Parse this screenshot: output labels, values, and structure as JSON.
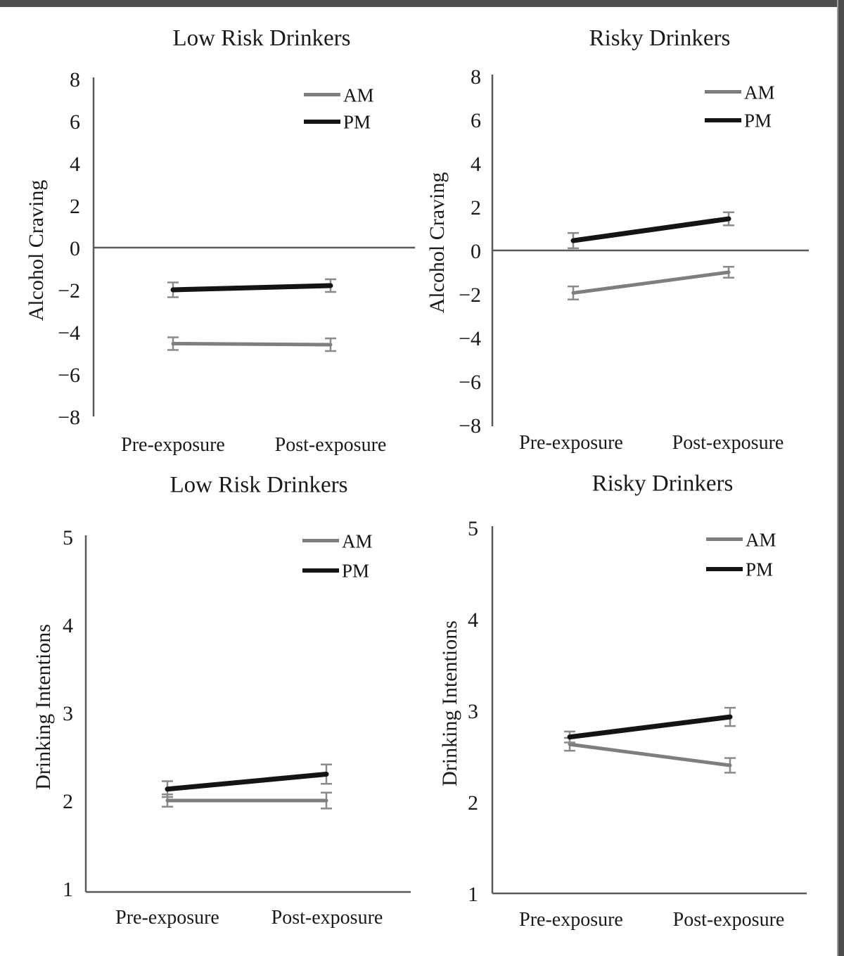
{
  "figure": {
    "background_color": "#ffffff",
    "frame_color": "#4e4e4e",
    "axis_color": "#5a5a5a",
    "error_bar_color": "#8a8a8a",
    "am_color": "#7e7e7e",
    "pm_color": "#141414"
  },
  "chart_data": [
    {
      "id": "alcohol-craving-low-risk",
      "type": "line",
      "position": "top-left",
      "title": "Low Risk Drinkers",
      "ylabel": "Alcohol Craving",
      "xlabel": "",
      "categories": [
        "Pre-exposure",
        "Post-exposure"
      ],
      "ylim": [
        -8,
        8
      ],
      "ytick_values": [
        8,
        6,
        4,
        2,
        0,
        -2,
        -4,
        -6,
        -8
      ],
      "yticks": [
        "8",
        "6",
        "4",
        "2",
        "0",
        "−2",
        "−4",
        "−6",
        "−8"
      ],
      "grid": false,
      "legend_position": "top-right",
      "series": [
        {
          "name": "AM",
          "color": "#7e7e7e",
          "values": [
            -4.55,
            -4.6
          ],
          "errors": [
            0.3,
            0.3
          ]
        },
        {
          "name": "PM",
          "color": "#141414",
          "values": [
            -2.0,
            -1.8
          ],
          "errors": [
            0.35,
            0.3
          ]
        }
      ]
    },
    {
      "id": "alcohol-craving-risky",
      "type": "line",
      "position": "top-right",
      "title": "Risky Drinkers",
      "ylabel": "Alcohol Craving",
      "xlabel": "",
      "categories": [
        "Pre-exposure",
        "Post-exposure"
      ],
      "ylim": [
        -8,
        8
      ],
      "ytick_values": [
        8,
        6,
        4,
        2,
        0,
        -2,
        -4,
        -6,
        -8
      ],
      "yticks": [
        "8",
        "6",
        "4",
        "2",
        "0",
        "−2",
        "−4",
        "−6",
        "−8"
      ],
      "grid": false,
      "legend_position": "top-right",
      "series": [
        {
          "name": "AM",
          "color": "#7e7e7e",
          "values": [
            -1.95,
            -1.0
          ],
          "errors": [
            0.3,
            0.25
          ]
        },
        {
          "name": "PM",
          "color": "#141414",
          "values": [
            0.45,
            1.45
          ],
          "errors": [
            0.35,
            0.3
          ]
        }
      ]
    },
    {
      "id": "drinking-intentions-low-risk",
      "type": "line",
      "position": "bottom-left",
      "title": "Low Risk Drinkers",
      "ylabel": "Drinking Intentions",
      "xlabel": "",
      "categories": [
        "Pre-exposure",
        "Post-exposure"
      ],
      "ylim": [
        1,
        5
      ],
      "ytick_values": [
        5,
        4,
        3,
        2,
        1
      ],
      "yticks": [
        "5",
        "4",
        "3",
        "2",
        "1"
      ],
      "grid": false,
      "legend_position": "top-right",
      "series": [
        {
          "name": "AM",
          "color": "#7e7e7e",
          "values": [
            2.0,
            2.0
          ],
          "errors": [
            0.07,
            0.09
          ]
        },
        {
          "name": "PM",
          "color": "#141414",
          "values": [
            2.13,
            2.3
          ],
          "errors": [
            0.09,
            0.11
          ]
        }
      ]
    },
    {
      "id": "drinking-intentions-risky",
      "type": "line",
      "position": "bottom-right",
      "title": "Risky Drinkers",
      "ylabel": "Drinking Intentions",
      "xlabel": "",
      "categories": [
        "Pre-exposure",
        "Post-exposure"
      ],
      "ylim": [
        1,
        5
      ],
      "ytick_values": [
        5,
        4,
        3,
        2,
        1
      ],
      "yticks": [
        "5",
        "4",
        "3",
        "2",
        "1"
      ],
      "grid": false,
      "legend_position": "top-right",
      "series": [
        {
          "name": "AM",
          "color": "#7e7e7e",
          "values": [
            2.63,
            2.4
          ],
          "errors": [
            0.07,
            0.08
          ]
        },
        {
          "name": "PM",
          "color": "#141414",
          "values": [
            2.71,
            2.93
          ],
          "errors": [
            0.06,
            0.1
          ]
        }
      ]
    }
  ]
}
